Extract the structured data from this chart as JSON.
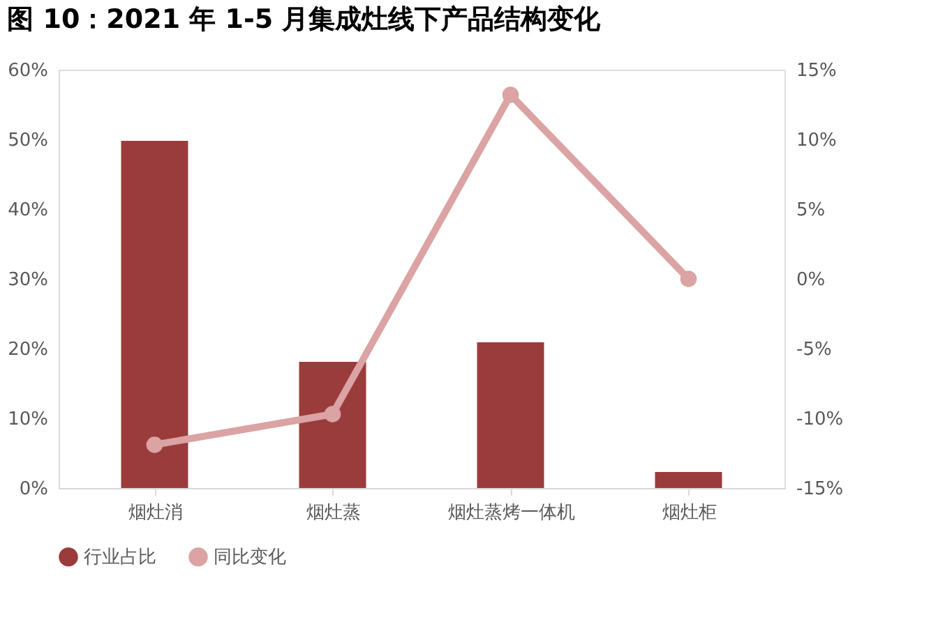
{
  "chart_data": {
    "type": "bar",
    "title": "图 10：2021 年 1-5 月集成灶线下产品结构变化",
    "categories": [
      "烟灶消",
      "烟灶蒸",
      "烟灶蒸烤一体机",
      "烟灶柜"
    ],
    "series": [
      {
        "name": "行业占比",
        "color": "#9b3c3c",
        "values": [
          49.8,
          18.1,
          20.9,
          2.3
        ]
      },
      {
        "name": "同比变化",
        "type": "line",
        "axis": "y2",
        "color": "#dba3a3",
        "marker": "circle",
        "values": [
          -11.9,
          -9.7,
          13.2,
          0.0
        ]
      }
    ],
    "ylim": [
      0,
      60
    ],
    "yticks": [
      {
        "value": 0,
        "label": "0%"
      },
      {
        "value": 10,
        "label": "10%"
      },
      {
        "value": 20,
        "label": "20%"
      },
      {
        "value": 30,
        "label": "30%"
      },
      {
        "value": 40,
        "label": "40%"
      },
      {
        "value": 50,
        "label": "50%"
      },
      {
        "value": 60,
        "label": "60%"
      }
    ],
    "y2lim": [
      -15,
      15
    ],
    "y2ticks": [
      {
        "value": -15,
        "label": "-15%"
      },
      {
        "value": -10,
        "label": "-10%"
      },
      {
        "value": -5,
        "label": "-5%"
      },
      {
        "value": 0,
        "label": "0%"
      },
      {
        "value": 5,
        "label": "5%"
      },
      {
        "value": 10,
        "label": "10%"
      },
      {
        "value": 15,
        "label": "15%"
      }
    ],
    "grid": false,
    "legend": "bottom"
  }
}
